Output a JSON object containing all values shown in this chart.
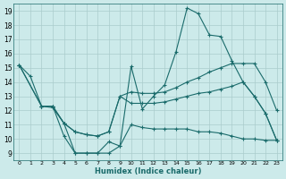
{
  "xlabel": "Humidex (Indice chaleur)",
  "bg_color": "#cceaea",
  "grid_color": "#aacccc",
  "line_color": "#1a6b6b",
  "xlim": [
    -0.5,
    23.5
  ],
  "ylim": [
    8.5,
    19.5
  ],
  "xticks": [
    0,
    1,
    2,
    3,
    4,
    5,
    6,
    7,
    8,
    9,
    10,
    11,
    12,
    13,
    14,
    15,
    16,
    17,
    18,
    19,
    20,
    21,
    22,
    23
  ],
  "yticks": [
    9,
    10,
    11,
    12,
    13,
    14,
    15,
    16,
    17,
    18,
    19
  ],
  "line1_x": [
    0,
    1,
    2,
    3,
    4,
    5,
    6,
    7,
    8,
    9,
    10,
    11,
    12,
    13,
    14,
    15,
    16,
    17,
    18,
    19,
    20,
    21,
    22,
    23
  ],
  "line1_y": [
    15.2,
    14.4,
    12.3,
    12.3,
    10.2,
    9.0,
    9.0,
    9.0,
    9.0,
    9.5,
    15.1,
    12.1,
    13.0,
    13.8,
    16.1,
    19.2,
    18.8,
    17.3,
    17.2,
    15.5,
    14.0,
    13.0,
    11.8,
    9.9
  ],
  "line2_x": [
    0,
    2,
    3,
    4,
    5,
    6,
    7,
    8,
    9,
    10,
    11,
    12,
    13,
    14,
    15,
    16,
    17,
    18,
    19,
    20,
    21,
    22,
    23
  ],
  "line2_y": [
    15.2,
    12.3,
    12.3,
    11.1,
    10.5,
    10.3,
    10.2,
    10.5,
    13.0,
    13.3,
    13.2,
    13.2,
    13.3,
    13.6,
    14.0,
    14.3,
    14.7,
    15.0,
    15.3,
    15.3,
    15.3,
    14.0,
    12.0
  ],
  "line3_x": [
    0,
    2,
    3,
    4,
    5,
    6,
    7,
    8,
    9,
    10,
    11,
    12,
    13,
    14,
    15,
    16,
    17,
    18,
    19,
    20,
    21,
    22,
    23
  ],
  "line3_y": [
    15.2,
    12.3,
    12.3,
    11.1,
    10.5,
    10.3,
    10.2,
    10.5,
    13.0,
    12.5,
    12.5,
    12.5,
    12.6,
    12.8,
    13.0,
    13.2,
    13.3,
    13.5,
    13.7,
    14.0,
    13.0,
    11.8,
    9.9
  ],
  "line4_x": [
    2,
    3,
    4,
    5,
    6,
    7,
    8,
    9,
    10,
    11,
    12,
    13,
    14,
    15,
    16,
    17,
    18,
    19,
    20,
    21,
    22,
    23
  ],
  "line4_y": [
    12.3,
    12.2,
    11.1,
    9.0,
    9.0,
    9.0,
    9.8,
    9.5,
    11.0,
    10.8,
    10.7,
    10.7,
    10.7,
    10.7,
    10.5,
    10.5,
    10.4,
    10.2,
    10.0,
    10.0,
    9.9,
    9.9
  ]
}
